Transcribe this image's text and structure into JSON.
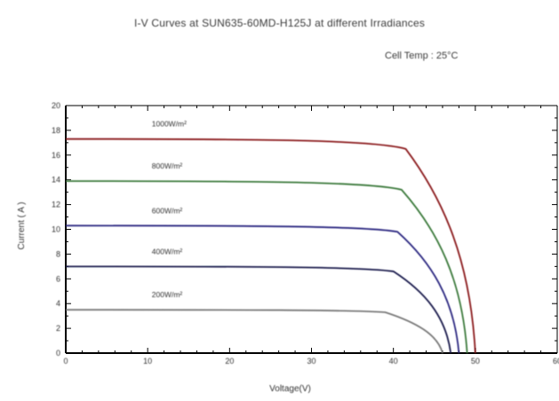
{
  "header": {
    "title": "I-V Curves at SUN635-60MD-H125J at different Irradiances",
    "subtitle": "Cell Temp : 25°C"
  },
  "chart_data": {
    "type": "line",
    "title": "I-V Curves at SUN635-60MD-H125J at different Irradiances",
    "subtitle": "Cell Temp : 25°C",
    "xlabel": "Voltage(V)",
    "ylabel": "Current ( A )",
    "xlim": [
      0,
      60
    ],
    "ylim": [
      0,
      20
    ],
    "xticks": [
      0,
      10,
      20,
      30,
      40,
      50,
      60
    ],
    "yticks": [
      0,
      2,
      4,
      6,
      8,
      10,
      12,
      14,
      16,
      18,
      20
    ],
    "grid": false,
    "series": [
      {
        "name": "1000W/m²",
        "color": "#8b1a1f",
        "isc": 17.3,
        "voc": 50.0,
        "knee_v": 41.5,
        "knee_i": 16.5
      },
      {
        "name": "800W/m²",
        "color": "#3c7a3c",
        "isc": 13.9,
        "voc": 49.0,
        "knee_v": 41.0,
        "knee_i": 13.2
      },
      {
        "name": "600W/m²",
        "color": "#2e2c82",
        "isc": 10.3,
        "voc": 48.0,
        "knee_v": 40.5,
        "knee_i": 9.8
      },
      {
        "name": "400W/m²",
        "color": "#1d1e4e",
        "isc": 7.0,
        "voc": 47.0,
        "knee_v": 40.0,
        "knee_i": 6.6
      },
      {
        "name": "200W/m²",
        "color": "#7a7a7a",
        "isc": 3.5,
        "voc": 46.0,
        "knee_v": 39.0,
        "knee_i": 3.3
      }
    ]
  }
}
